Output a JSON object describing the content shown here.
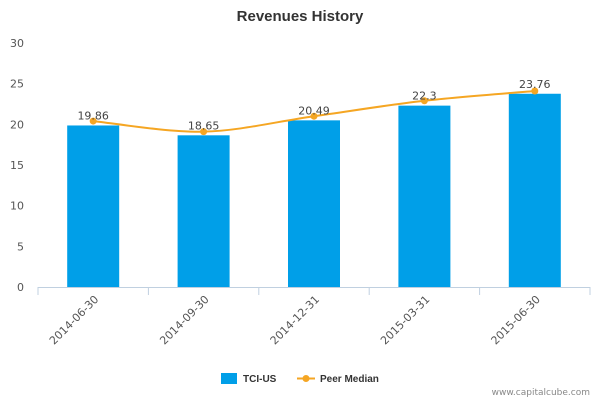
{
  "chart_data": {
    "type": "bar",
    "title": "Revenues History",
    "xlabel": "",
    "ylabel": "",
    "ylim": [
      0,
      30
    ],
    "yticks": [
      "0",
      "5",
      "10",
      "15",
      "20",
      "25",
      "30"
    ],
    "categories": [
      "2014-06-30",
      "2014-09-30",
      "2014-12-31",
      "2015-03-31",
      "2015-06-30"
    ],
    "series": [
      {
        "name": "TCI-US",
        "type": "bar",
        "color": "#009fe8",
        "values": [
          19.86,
          18.65,
          20.49,
          22.3,
          23.76
        ],
        "labels": [
          "19.86",
          "18.65",
          "20.49",
          "22.3",
          "23.76"
        ]
      },
      {
        "name": "Peer Median",
        "type": "line",
        "color": "#f5a623",
        "values": [
          20.4,
          19.1,
          21.0,
          22.9,
          24.1
        ]
      }
    ],
    "grid": false,
    "legend": "bottom-center"
  },
  "footer": {
    "credit": "www.capitalcube.com"
  }
}
